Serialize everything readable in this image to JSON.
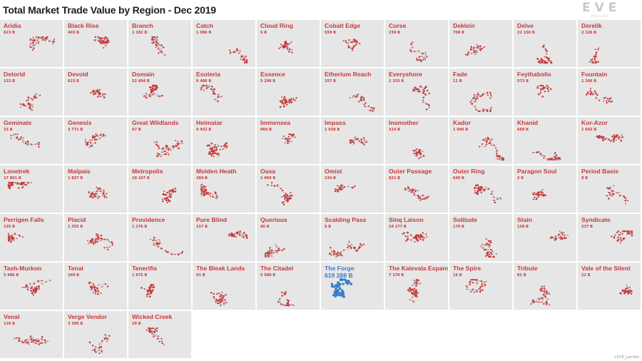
{
  "title": "Total Market Trade Value by Region - Dec 2019",
  "logo": {
    "word": "EVE",
    "sub": "ONLINE"
  },
  "credit": {
    "icon": "twitter-bird-icon",
    "glyph": "✔",
    "handle": "CCP_Larrikin"
  },
  "colors": {
    "cell_bg": "#e6e6e6",
    "default_mark": "#c8383a",
    "highlight_mark": "#3a7cc8"
  },
  "chart_data": {
    "type": "table",
    "title": "Total Market Trade Value by Region - Dec 2019",
    "unit": "B",
    "highlighted_region": "The Forge",
    "regions": [
      {
        "name": "Aridia",
        "value": 623,
        "label": "623 B"
      },
      {
        "name": "Black Rise",
        "value": 465,
        "label": "465 B"
      },
      {
        "name": "Branch",
        "value": 1182,
        "label": "1 182 B"
      },
      {
        "name": "Catch",
        "value": 1086,
        "label": "1 086 B"
      },
      {
        "name": "Cloud Ring",
        "value": 6,
        "label": "6 B"
      },
      {
        "name": "Cobalt Edge",
        "value": 559,
        "label": "559 B"
      },
      {
        "name": "Curse",
        "value": 239,
        "label": "239 B"
      },
      {
        "name": "Deklein",
        "value": 708,
        "label": "708 B"
      },
      {
        "name": "Delve",
        "value": 22156,
        "label": "22 156 B"
      },
      {
        "name": "Derelik",
        "value": 2126,
        "label": "2 126 B"
      },
      {
        "name": "Detorid",
        "value": 132,
        "label": "132 B"
      },
      {
        "name": "Devoid",
        "value": 623,
        "label": "623 B"
      },
      {
        "name": "Domain",
        "value": 52604,
        "label": "52 604 B"
      },
      {
        "name": "Esoteria",
        "value": 6486,
        "label": "6 486 B"
      },
      {
        "name": "Essence",
        "value": 5296,
        "label": "5 296 B"
      },
      {
        "name": "Etherium Reach",
        "value": 257,
        "label": "257 B"
      },
      {
        "name": "Everyshore",
        "value": 2333,
        "label": "2 333 B"
      },
      {
        "name": "Fade",
        "value": 11,
        "label": "11 B"
      },
      {
        "name": "Feythabolis",
        "value": 573,
        "label": "573 B"
      },
      {
        "name": "Fountain",
        "value": 1266,
        "label": "1 266 B"
      },
      {
        "name": "Geminate",
        "value": 15,
        "label": "15 B"
      },
      {
        "name": "Genesis",
        "value": 3771,
        "label": "3 771 B"
      },
      {
        "name": "Great Wildlands",
        "value": 67,
        "label": "67 B"
      },
      {
        "name": "Heimatar",
        "value": 9452,
        "label": "9 452 B"
      },
      {
        "name": "Immensea",
        "value": 966,
        "label": "966 B"
      },
      {
        "name": "Impass",
        "value": 1028,
        "label": "1 028 B"
      },
      {
        "name": "Insmother",
        "value": 314,
        "label": "314 B"
      },
      {
        "name": "Kador",
        "value": 1046,
        "label": "1 046 B"
      },
      {
        "name": "Khanid",
        "value": 668,
        "label": "668 B"
      },
      {
        "name": "Kor-Azor",
        "value": 1642,
        "label": "1 642 B"
      },
      {
        "name": "Lonetrek",
        "value": 17801,
        "label": "17 801 B"
      },
      {
        "name": "Malpais",
        "value": 1827,
        "label": "1 827 B"
      },
      {
        "name": "Metropolis",
        "value": 10107,
        "label": "10 107 B"
      },
      {
        "name": "Molden Heath",
        "value": 384,
        "label": "384 B"
      },
      {
        "name": "Oasa",
        "value": 1969,
        "label": "1 969 B"
      },
      {
        "name": "Omist",
        "value": 234,
        "label": "234 B"
      },
      {
        "name": "Outer Passage",
        "value": 821,
        "label": "821 B"
      },
      {
        "name": "Outer Ring",
        "value": 640,
        "label": "640 B"
      },
      {
        "name": "Paragon Soul",
        "value": 2,
        "label": "2 B"
      },
      {
        "name": "Period Basis",
        "value": 8,
        "label": "8 B"
      },
      {
        "name": "Perrigen Falls",
        "value": 135,
        "label": "135 B"
      },
      {
        "name": "Placid",
        "value": 1355,
        "label": "1 355 B"
      },
      {
        "name": "Providence",
        "value": 1176,
        "label": "1 176 B"
      },
      {
        "name": "Pure Blind",
        "value": 157,
        "label": "157 B"
      },
      {
        "name": "Querious",
        "value": 40,
        "label": "40 B"
      },
      {
        "name": "Scalding Pass",
        "value": 6,
        "label": "6 B"
      },
      {
        "name": "Sinq Laison",
        "value": 24277,
        "label": "24 277 B"
      },
      {
        "name": "Solitude",
        "value": 170,
        "label": "170 B"
      },
      {
        "name": "Stain",
        "value": 158,
        "label": "158 B"
      },
      {
        "name": "Syndicate",
        "value": 337,
        "label": "337 B"
      },
      {
        "name": "Tash-Murkon",
        "value": 5486,
        "label": "5 486 B"
      },
      {
        "name": "Tenal",
        "value": 169,
        "label": "169 B"
      },
      {
        "name": "Tenerifis",
        "value": 1975,
        "label": "1 975 B"
      },
      {
        "name": "The Bleak Lands",
        "value": 81,
        "label": "81 B"
      },
      {
        "name": "The Citadel",
        "value": 5080,
        "label": "5 080 B"
      },
      {
        "name": "The Forge",
        "value": 619288,
        "label": "619 288 B"
      },
      {
        "name": "The Kalevala Expanse",
        "value": 7370,
        "label": "7 370 B"
      },
      {
        "name": "The Spire",
        "value": 15,
        "label": "15 B"
      },
      {
        "name": "Tribute",
        "value": 81,
        "label": "81 B"
      },
      {
        "name": "Vale of the Silent",
        "value": 22,
        "label": "22 B"
      },
      {
        "name": "Venal",
        "value": 126,
        "label": "126 B"
      },
      {
        "name": "Verge Vendor",
        "value": 3385,
        "label": "3 385 B"
      },
      {
        "name": "Wicked Creek",
        "value": 29,
        "label": "29 B"
      }
    ]
  }
}
